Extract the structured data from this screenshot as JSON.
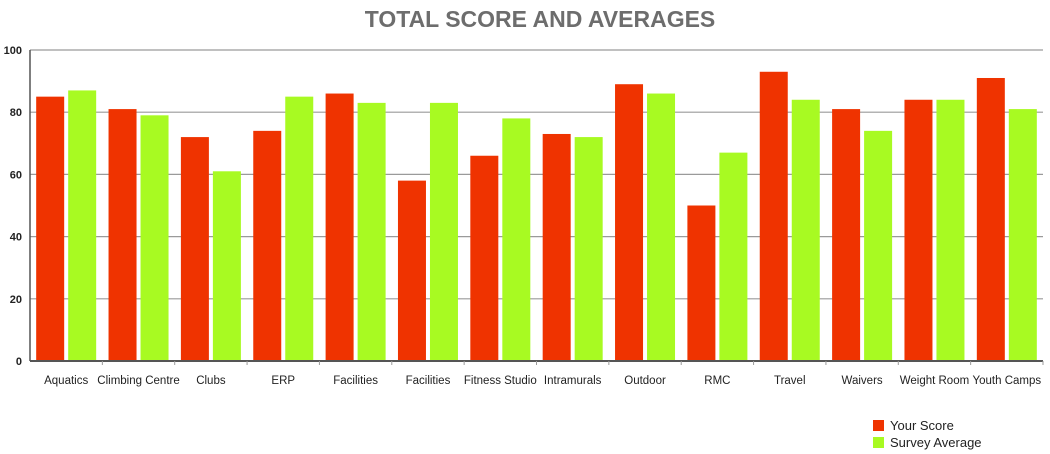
{
  "chart_data": {
    "type": "bar",
    "title": "TOTAL SCORE AND AVERAGES",
    "xlabel": "",
    "ylabel": "",
    "ylim": [
      0,
      100
    ],
    "yticks": [
      0,
      20,
      40,
      60,
      80,
      100
    ],
    "grid": true,
    "legend_position": "bottom-right",
    "categories": [
      "Aquatics",
      "Climbing Centre",
      "Clubs",
      "ERP",
      "Facilities",
      "Facilities",
      "Fitness Studio",
      "Intramurals",
      "Outdoor",
      "RMC",
      "Travel",
      "Waivers",
      "Weight Room",
      "Youth Camps"
    ],
    "series": [
      {
        "name": "Your Score",
        "color": "#ef3300",
        "values": [
          85,
          81,
          72,
          74,
          86,
          58,
          66,
          73,
          89,
          50,
          93,
          81,
          84,
          91
        ]
      },
      {
        "name": "Survey Average",
        "color": "#a8fa22",
        "values": [
          87,
          79,
          61,
          85,
          83,
          83,
          78,
          72,
          86,
          67,
          84,
          74,
          84,
          81
        ]
      }
    ]
  },
  "colors": {
    "title": "#6d6d6d",
    "axis": "#555555",
    "grid": "#9a9a9a",
    "text": "#222222"
  }
}
